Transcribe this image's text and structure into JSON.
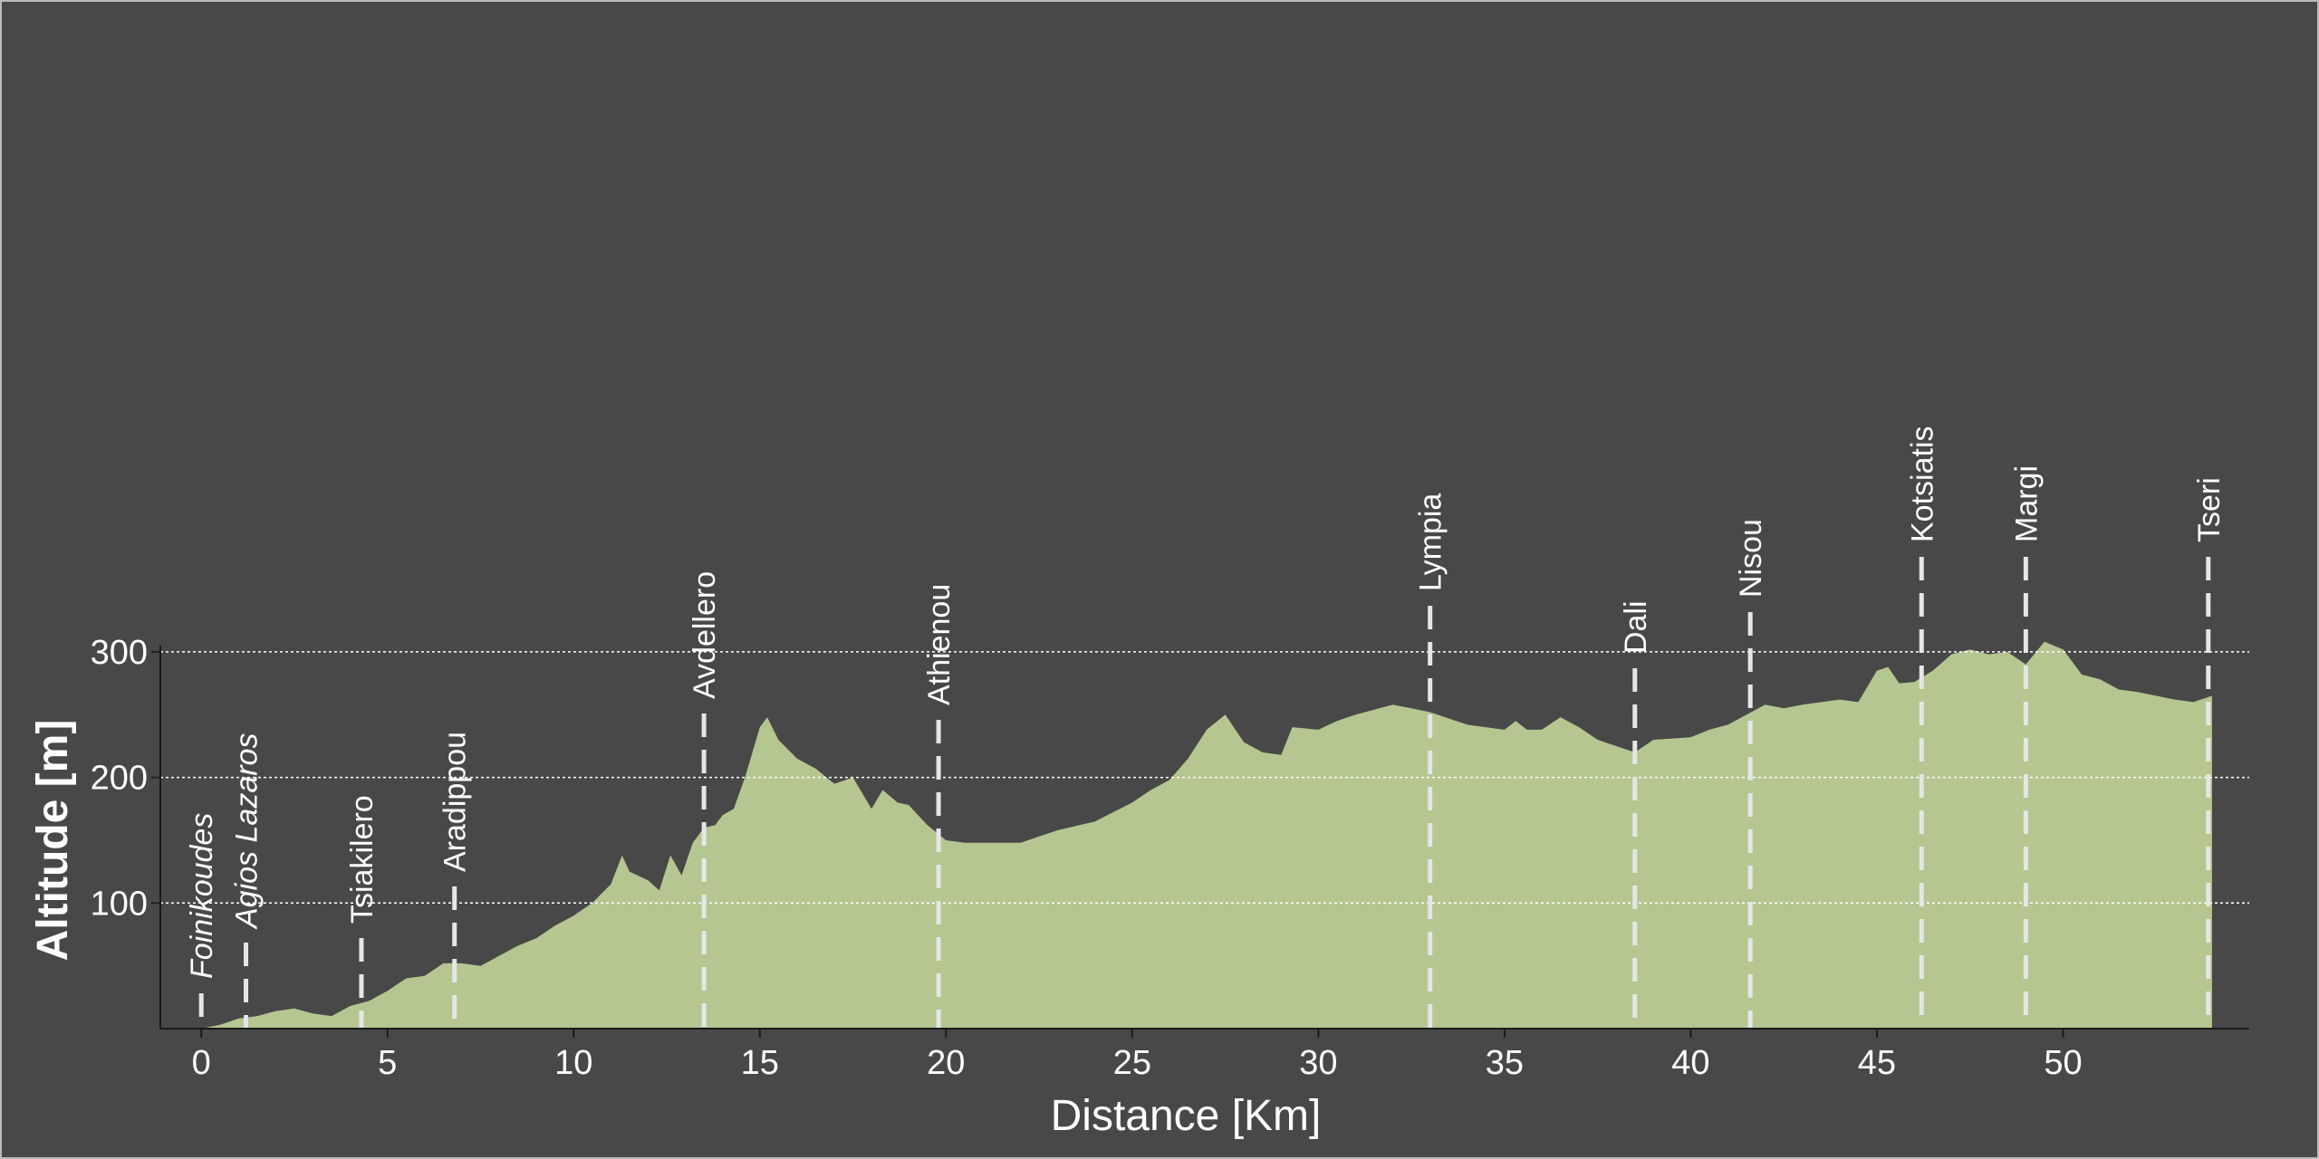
{
  "chart_data": {
    "type": "area",
    "xlabel": "Distance [Km]",
    "ylabel": "Altitude [m]",
    "x": [
      0,
      0.5,
      1,
      1.5,
      2,
      2.5,
      3,
      3.5,
      4,
      4.5,
      5,
      5.5,
      6,
      6.5,
      7,
      7.5,
      8,
      8.5,
      9,
      9.5,
      10,
      10.5,
      11,
      11.3,
      11.5,
      12,
      12.3,
      12.6,
      12.9,
      13.2,
      13.5,
      13.8,
      14,
      14.3,
      14.6,
      15,
      15.2,
      15.5,
      16,
      16.5,
      17,
      17.5,
      18,
      18.3,
      18.7,
      19,
      19.5,
      20,
      20.5,
      21,
      22,
      23,
      24,
      25,
      25.5,
      26,
      26.5,
      27,
      27.5,
      28,
      28.5,
      29,
      29.3,
      30,
      30.5,
      31,
      32,
      32.5,
      33,
      34,
      35,
      35.3,
      35.6,
      36,
      36.5,
      37,
      37.5,
      38,
      38.5,
      39,
      40,
      40.5,
      41,
      41.5,
      42,
      42.5,
      43,
      44,
      44.5,
      45,
      45.3,
      45.6,
      46,
      46.5,
      47,
      47.5,
      48,
      48.5,
      49,
      49.5,
      50,
      50.5,
      51,
      51.5,
      52,
      53,
      53.5,
      54
    ],
    "values": [
      0,
      3,
      8,
      10,
      14,
      16,
      12,
      10,
      18,
      22,
      30,
      40,
      42,
      52,
      52,
      50,
      58,
      66,
      72,
      82,
      90,
      100,
      115,
      138,
      125,
      118,
      110,
      138,
      122,
      148,
      160,
      162,
      170,
      175,
      200,
      240,
      248,
      230,
      215,
      207,
      195,
      200,
      175,
      190,
      180,
      178,
      162,
      150,
      148,
      148,
      148,
      158,
      165,
      180,
      190,
      198,
      215,
      238,
      250,
      228,
      220,
      218,
      240,
      238,
      245,
      250,
      258,
      255,
      252,
      242,
      238,
      245,
      238,
      238,
      248,
      240,
      230,
      225,
      220,
      230,
      232,
      238,
      242,
      250,
      258,
      255,
      258,
      262,
      260,
      285,
      288,
      275,
      276,
      285,
      298,
      302,
      298,
      300,
      290,
      308,
      302,
      282,
      278,
      270,
      268,
      262,
      260,
      265
    ],
    "color": "#b5c690",
    "xlim": [
      -1.1,
      55
    ],
    "ylim": [
      0,
      305
    ],
    "xticks": [
      0,
      5,
      10,
      15,
      20,
      25,
      30,
      35,
      40,
      45,
      50
    ],
    "yticks": [
      100,
      200,
      300
    ],
    "grid": true,
    "markers": [
      {
        "label": "Foinikoudes",
        "x": 0
      },
      {
        "label": "Agios Lazaros",
        "x": 1.2
      },
      {
        "label": "Tsiakilero",
        "x": 4.3
      },
      {
        "label": "Aradippou",
        "x": 6.8
      },
      {
        "label": "Avdellero",
        "x": 13.5
      },
      {
        "label": "Athienou",
        "x": 19.8
      },
      {
        "label": "Lympia",
        "x": 33
      },
      {
        "label": "Dali",
        "x": 38.5
      },
      {
        "label": "Nisou",
        "x": 41.6
      },
      {
        "label": "Kotsiatis",
        "x": 46.2
      },
      {
        "label": "Margi",
        "x": 49
      },
      {
        "label": "Tseri",
        "x": 53.9
      }
    ]
  }
}
